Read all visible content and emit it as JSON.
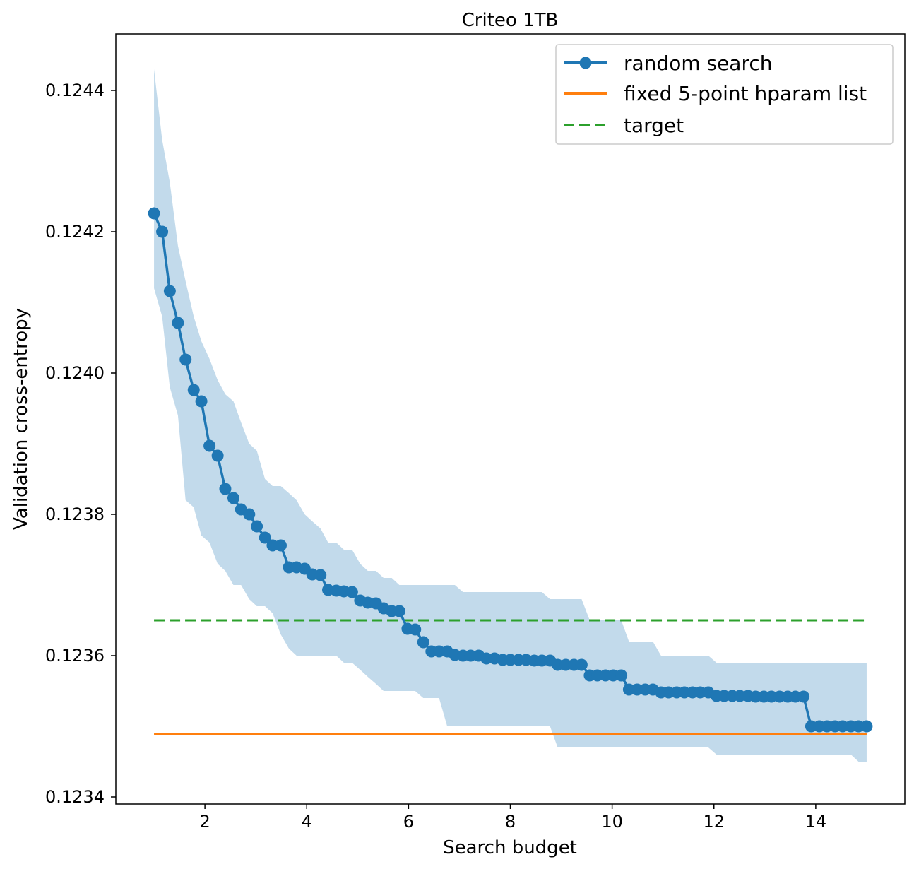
{
  "chart_data": {
    "type": "line",
    "title": "Criteo 1TB",
    "xlabel": "Search budget",
    "ylabel": "Validation cross-entropy",
    "xlim": [
      0.25,
      15.75
    ],
    "ylim": [
      0.12339,
      0.12448
    ],
    "xticks": [
      2,
      4,
      6,
      8,
      10,
      12,
      14
    ],
    "xtick_labels": [
      "2",
      "4",
      "6",
      "8",
      "10",
      "12",
      "14"
    ],
    "yticks": [
      0.1234,
      0.1236,
      0.1238,
      0.124,
      0.1242,
      0.1244
    ],
    "ytick_labels": [
      "0.1234",
      "0.1236",
      "0.1238",
      "0.1240",
      "0.1242",
      "0.1244"
    ],
    "grid": false,
    "legend": {
      "position": "top-right",
      "entries": [
        "random search",
        "fixed 5-point hparam list",
        "target"
      ]
    },
    "colors": {
      "random_search": "#1f77b4",
      "band": "#1f77b4",
      "fixed": "#ff7f0e",
      "target": "#2ca02c"
    },
    "series": [
      {
        "name": "random search",
        "style": "line-with-markers",
        "x": [
          1.0,
          1.16,
          1.31,
          1.47,
          1.62,
          1.78,
          1.93,
          2.09,
          2.25,
          2.4,
          2.56,
          2.71,
          2.87,
          3.02,
          3.18,
          3.33,
          3.49,
          3.65,
          3.8,
          3.96,
          4.11,
          4.27,
          4.42,
          4.58,
          4.73,
          4.89,
          5.05,
          5.2,
          5.36,
          5.51,
          5.67,
          5.82,
          5.98,
          6.13,
          6.29,
          6.45,
          6.6,
          6.76,
          6.91,
          7.07,
          7.22,
          7.38,
          7.53,
          7.69,
          7.85,
          8.0,
          8.16,
          8.31,
          8.47,
          8.62,
          8.78,
          8.93,
          9.09,
          9.25,
          9.4,
          9.56,
          9.71,
          9.87,
          10.02,
          10.18,
          10.33,
          10.49,
          10.65,
          10.8,
          10.96,
          11.11,
          11.27,
          11.42,
          11.58,
          11.73,
          11.89,
          12.05,
          12.2,
          12.36,
          12.51,
          12.67,
          12.82,
          12.98,
          13.13,
          13.29,
          13.45,
          13.6,
          13.76,
          13.91,
          14.07,
          14.22,
          14.38,
          14.53,
          14.69,
          14.84,
          15.0
        ],
        "y": [
          0.124226,
          0.1242,
          0.124116,
          0.124071,
          0.124019,
          0.123976,
          0.12396,
          0.123897,
          0.123883,
          0.123836,
          0.123823,
          0.123807,
          0.1238,
          0.123783,
          0.123767,
          0.123756,
          0.123756,
          0.123725,
          0.123725,
          0.123723,
          0.123715,
          0.123714,
          0.123693,
          0.123692,
          0.123691,
          0.12369,
          0.123678,
          0.123675,
          0.123674,
          0.123667,
          0.123663,
          0.123663,
          0.123638,
          0.123637,
          0.123619,
          0.123606,
          0.123606,
          0.123606,
          0.123601,
          0.1236,
          0.1236,
          0.1236,
          0.123596,
          0.123596,
          0.123594,
          0.123594,
          0.123594,
          0.123594,
          0.123593,
          0.123593,
          0.123593,
          0.123587,
          0.123587,
          0.123587,
          0.123587,
          0.123572,
          0.123572,
          0.123572,
          0.123572,
          0.123572,
          0.123552,
          0.123552,
          0.123552,
          0.123552,
          0.123548,
          0.123548,
          0.123548,
          0.123548,
          0.123548,
          0.123548,
          0.123548,
          0.123543,
          0.123543,
          0.123543,
          0.123543,
          0.123543,
          0.123542,
          0.123542,
          0.123542,
          0.123542,
          0.123542,
          0.123542,
          0.123542,
          0.1235,
          0.1235,
          0.1235,
          0.1235,
          0.1235,
          0.1235,
          0.1235,
          0.1235
        ]
      },
      {
        "name": "random search band",
        "style": "band",
        "x": [
          1.0,
          1.16,
          1.31,
          1.47,
          1.62,
          1.78,
          1.93,
          2.09,
          2.25,
          2.4,
          2.56,
          2.71,
          2.87,
          3.02,
          3.18,
          3.33,
          3.49,
          3.65,
          3.8,
          3.96,
          4.11,
          4.27,
          4.42,
          4.58,
          4.73,
          4.89,
          5.05,
          5.2,
          5.36,
          5.51,
          5.67,
          5.82,
          5.98,
          6.13,
          6.29,
          6.45,
          6.6,
          6.76,
          6.91,
          7.07,
          7.22,
          7.38,
          7.53,
          7.69,
          7.85,
          8.0,
          8.16,
          8.31,
          8.47,
          8.62,
          8.78,
          8.93,
          9.09,
          9.25,
          9.4,
          9.56,
          9.71,
          9.87,
          10.02,
          10.18,
          10.33,
          10.49,
          10.65,
          10.8,
          10.96,
          11.11,
          11.27,
          11.42,
          11.58,
          11.73,
          11.89,
          12.05,
          12.2,
          12.36,
          12.51,
          12.67,
          12.82,
          12.98,
          13.13,
          13.29,
          13.45,
          13.6,
          13.76,
          13.91,
          14.07,
          14.22,
          14.38,
          14.53,
          14.69,
          14.84,
          15.0
        ],
        "upper": [
          0.12443,
          0.12433,
          0.12427,
          0.12418,
          0.12413,
          0.12408,
          0.124045,
          0.12402,
          0.12399,
          0.12397,
          0.12396,
          0.12393,
          0.1239,
          0.12389,
          0.12385,
          0.12384,
          0.12384,
          0.12383,
          0.12382,
          0.1238,
          0.12379,
          0.12378,
          0.12376,
          0.12376,
          0.12375,
          0.12375,
          0.12373,
          0.12372,
          0.12372,
          0.12371,
          0.12371,
          0.1237,
          0.1237,
          0.1237,
          0.1237,
          0.1237,
          0.1237,
          0.1237,
          0.1237,
          0.12369,
          0.12369,
          0.12369,
          0.12369,
          0.12369,
          0.12369,
          0.12369,
          0.12369,
          0.12369,
          0.12369,
          0.12369,
          0.12368,
          0.12368,
          0.12368,
          0.12368,
          0.12368,
          0.12365,
          0.12365,
          0.12365,
          0.12365,
          0.12365,
          0.12362,
          0.12362,
          0.12362,
          0.12362,
          0.1236,
          0.1236,
          0.1236,
          0.1236,
          0.1236,
          0.1236,
          0.1236,
          0.12359,
          0.12359,
          0.12359,
          0.12359,
          0.12359,
          0.12359,
          0.12359,
          0.12359,
          0.12359,
          0.12359,
          0.12359,
          0.12359,
          0.12359,
          0.12359,
          0.12359,
          0.12359,
          0.12359,
          0.12359,
          0.12359,
          0.12359
        ],
        "lower": [
          0.12412,
          0.12408,
          0.12398,
          0.12394,
          0.12382,
          0.12381,
          0.12377,
          0.12376,
          0.12373,
          0.12372,
          0.1237,
          0.1237,
          0.12368,
          0.12367,
          0.12367,
          0.12366,
          0.12363,
          0.12361,
          0.1236,
          0.1236,
          0.1236,
          0.1236,
          0.1236,
          0.1236,
          0.12359,
          0.12359,
          0.12358,
          0.12357,
          0.12356,
          0.12355,
          0.12355,
          0.12355,
          0.12355,
          0.12355,
          0.12354,
          0.12354,
          0.12354,
          0.1235,
          0.1235,
          0.1235,
          0.1235,
          0.1235,
          0.1235,
          0.1235,
          0.1235,
          0.1235,
          0.1235,
          0.1235,
          0.1235,
          0.1235,
          0.1235,
          0.12347,
          0.12347,
          0.12347,
          0.12347,
          0.12347,
          0.12347,
          0.12347,
          0.12347,
          0.12347,
          0.12347,
          0.12347,
          0.12347,
          0.12347,
          0.12347,
          0.12347,
          0.12347,
          0.12347,
          0.12347,
          0.12347,
          0.12347,
          0.12346,
          0.12346,
          0.12346,
          0.12346,
          0.12346,
          0.12346,
          0.12346,
          0.12346,
          0.12346,
          0.12346,
          0.12346,
          0.12346,
          0.12346,
          0.12346,
          0.12346,
          0.12346,
          0.12346,
          0.12346,
          0.12345,
          0.12345
        ]
      },
      {
        "name": "fixed 5-point hparam list",
        "style": "solid",
        "x": [
          1.0,
          15.0
        ],
        "y": [
          0.123489,
          0.123489
        ]
      },
      {
        "name": "target",
        "style": "dashed",
        "x": [
          1.0,
          15.0
        ],
        "y": [
          0.12365,
          0.12365
        ]
      }
    ]
  }
}
